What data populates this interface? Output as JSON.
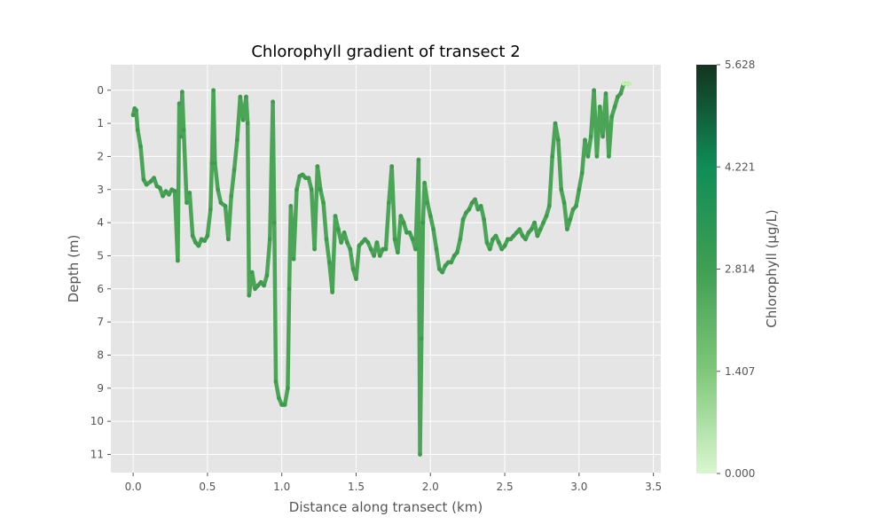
{
  "chart_data": {
    "type": "scatter",
    "title": "Chlorophyll gradient of transect 2",
    "xlabel": "Distance along transect (km)",
    "ylabel": "Depth (m)",
    "xlim": [
      -0.15,
      3.55
    ],
    "ylim": [
      11.55,
      -0.77
    ],
    "y_inverted": true,
    "grid": true,
    "x_ticks": [
      0.0,
      0.5,
      1.0,
      1.5,
      2.0,
      2.5,
      3.0,
      3.5
    ],
    "x_tick_labels": [
      "0.0",
      "0.5",
      "1.0",
      "1.5",
      "2.0",
      "2.5",
      "3.0",
      "3.5"
    ],
    "y_ticks": [
      0,
      1,
      2,
      3,
      4,
      5,
      6,
      7,
      8,
      9,
      10,
      11
    ],
    "y_tick_labels": [
      "0",
      "1",
      "2",
      "3",
      "4",
      "5",
      "6",
      "7",
      "8",
      "9",
      "10",
      "11"
    ],
    "colorbar": {
      "label": "Chlorophyll (µg/L)",
      "range": [
        0.0,
        5.628
      ],
      "ticks": [
        0.0,
        1.407,
        2.814,
        4.221,
        5.628
      ],
      "tick_labels": [
        "0.000",
        "1.407",
        "2.814",
        "4.221",
        "5.628"
      ],
      "colormap": [
        "#d9f7cf",
        "#7fc77a",
        "#3f9f52",
        "#108d57",
        "#13341f"
      ]
    },
    "points": [
      [
        0.0,
        0.75
      ],
      [
        0.01,
        0.55
      ],
      [
        0.02,
        0.6
      ],
      [
        0.03,
        1.2
      ],
      [
        0.05,
        1.7
      ],
      [
        0.07,
        2.7
      ],
      [
        0.09,
        2.85
      ],
      [
        0.12,
        2.75
      ],
      [
        0.14,
        2.65
      ],
      [
        0.16,
        2.9
      ],
      [
        0.18,
        2.95
      ],
      [
        0.2,
        3.2
      ],
      [
        0.22,
        3.05
      ],
      [
        0.24,
        3.15
      ],
      [
        0.26,
        3.0
      ],
      [
        0.28,
        3.05
      ],
      [
        0.3,
        5.15
      ],
      [
        0.31,
        0.4
      ],
      [
        0.32,
        1.4
      ],
      [
        0.33,
        0.05
      ],
      [
        0.34,
        1.2
      ],
      [
        0.36,
        3.4
      ],
      [
        0.38,
        3.1
      ],
      [
        0.4,
        4.4
      ],
      [
        0.42,
        4.6
      ],
      [
        0.44,
        4.7
      ],
      [
        0.46,
        4.5
      ],
      [
        0.48,
        4.55
      ],
      [
        0.5,
        4.4
      ],
      [
        0.52,
        3.6
      ],
      [
        0.53,
        2.2
      ],
      [
        0.54,
        0.0
      ],
      [
        0.55,
        2.2
      ],
      [
        0.57,
        3.0
      ],
      [
        0.59,
        3.4
      ],
      [
        0.62,
        3.5
      ],
      [
        0.64,
        4.5
      ],
      [
        0.66,
        3.2
      ],
      [
        0.68,
        2.4
      ],
      [
        0.7,
        1.5
      ],
      [
        0.72,
        0.2
      ],
      [
        0.74,
        0.9
      ],
      [
        0.76,
        0.2
      ],
      [
        0.77,
        1.0
      ],
      [
        0.78,
        6.2
      ],
      [
        0.8,
        5.5
      ],
      [
        0.82,
        6.0
      ],
      [
        0.84,
        5.9
      ],
      [
        0.86,
        5.8
      ],
      [
        0.88,
        5.9
      ],
      [
        0.9,
        5.6
      ],
      [
        0.92,
        4.5
      ],
      [
        0.94,
        0.35
      ],
      [
        0.95,
        4.0
      ],
      [
        0.96,
        8.8
      ],
      [
        0.98,
        9.3
      ],
      [
        1.0,
        9.5
      ],
      [
        1.02,
        9.5
      ],
      [
        1.04,
        9.0
      ],
      [
        1.05,
        6.0
      ],
      [
        1.06,
        3.5
      ],
      [
        1.08,
        5.1
      ],
      [
        1.1,
        3.0
      ],
      [
        1.12,
        2.6
      ],
      [
        1.14,
        2.55
      ],
      [
        1.16,
        2.65
      ],
      [
        1.18,
        2.65
      ],
      [
        1.2,
        3.0
      ],
      [
        1.22,
        4.8
      ],
      [
        1.24,
        2.3
      ],
      [
        1.26,
        3.0
      ],
      [
        1.28,
        3.4
      ],
      [
        1.3,
        4.5
      ],
      [
        1.32,
        5.2
      ],
      [
        1.34,
        6.1
      ],
      [
        1.36,
        3.8
      ],
      [
        1.38,
        4.2
      ],
      [
        1.4,
        4.6
      ],
      [
        1.42,
        4.3
      ],
      [
        1.44,
        4.6
      ],
      [
        1.46,
        4.8
      ],
      [
        1.48,
        5.4
      ],
      [
        1.5,
        5.7
      ],
      [
        1.52,
        4.7
      ],
      [
        1.54,
        4.6
      ],
      [
        1.56,
        4.5
      ],
      [
        1.58,
        4.6
      ],
      [
        1.6,
        4.8
      ],
      [
        1.62,
        5.0
      ],
      [
        1.64,
        4.6
      ],
      [
        1.66,
        5.0
      ],
      [
        1.68,
        4.8
      ],
      [
        1.7,
        4.8
      ],
      [
        1.72,
        3.4
      ],
      [
        1.74,
        2.3
      ],
      [
        1.76,
        4.5
      ],
      [
        1.78,
        4.9
      ],
      [
        1.8,
        3.8
      ],
      [
        1.82,
        4.0
      ],
      [
        1.84,
        4.3
      ],
      [
        1.86,
        4.3
      ],
      [
        1.88,
        4.5
      ],
      [
        1.9,
        4.8
      ],
      [
        1.92,
        2.1
      ],
      [
        1.93,
        11.0
      ],
      [
        1.94,
        7.5
      ],
      [
        1.95,
        4.0
      ],
      [
        1.96,
        2.8
      ],
      [
        1.98,
        3.4
      ],
      [
        2.0,
        3.8
      ],
      [
        2.02,
        4.2
      ],
      [
        2.04,
        4.8
      ],
      [
        2.06,
        5.4
      ],
      [
        2.08,
        5.5
      ],
      [
        2.1,
        5.3
      ],
      [
        2.12,
        5.2
      ],
      [
        2.14,
        5.2
      ],
      [
        2.16,
        5.0
      ],
      [
        2.18,
        4.9
      ],
      [
        2.2,
        4.5
      ],
      [
        2.22,
        3.9
      ],
      [
        2.24,
        3.7
      ],
      [
        2.26,
        3.6
      ],
      [
        2.28,
        3.4
      ],
      [
        2.3,
        3.3
      ],
      [
        2.32,
        3.6
      ],
      [
        2.34,
        3.5
      ],
      [
        2.36,
        3.9
      ],
      [
        2.38,
        4.6
      ],
      [
        2.4,
        4.8
      ],
      [
        2.42,
        4.5
      ],
      [
        2.44,
        4.4
      ],
      [
        2.46,
        4.6
      ],
      [
        2.48,
        4.8
      ],
      [
        2.5,
        4.7
      ],
      [
        2.52,
        4.5
      ],
      [
        2.54,
        4.5
      ],
      [
        2.56,
        4.4
      ],
      [
        2.58,
        4.3
      ],
      [
        2.6,
        4.2
      ],
      [
        2.62,
        4.4
      ],
      [
        2.64,
        4.5
      ],
      [
        2.66,
        4.3
      ],
      [
        2.68,
        4.2
      ],
      [
        2.7,
        4.0
      ],
      [
        2.72,
        4.4
      ],
      [
        2.74,
        4.2
      ],
      [
        2.76,
        4.0
      ],
      [
        2.78,
        3.8
      ],
      [
        2.8,
        3.5
      ],
      [
        2.82,
        2.0
      ],
      [
        2.84,
        1.0
      ],
      [
        2.86,
        1.5
      ],
      [
        2.88,
        3.0
      ],
      [
        2.9,
        3.4
      ],
      [
        2.92,
        4.2
      ],
      [
        2.94,
        3.9
      ],
      [
        2.96,
        3.6
      ],
      [
        2.98,
        3.5
      ],
      [
        3.0,
        3.0
      ],
      [
        3.02,
        2.5
      ],
      [
        3.04,
        1.5
      ],
      [
        3.06,
        2.0
      ],
      [
        3.08,
        1.4
      ],
      [
        3.1,
        0.0
      ],
      [
        3.12,
        2.0
      ],
      [
        3.14,
        0.5
      ],
      [
        3.16,
        1.4
      ],
      [
        3.18,
        0.1
      ],
      [
        3.2,
        2.0
      ],
      [
        3.22,
        0.8
      ],
      [
        3.24,
        0.5
      ],
      [
        3.26,
        0.2
      ],
      [
        3.28,
        0.1
      ],
      [
        3.3,
        -0.2
      ],
      [
        3.32,
        -0.2
      ],
      [
        3.34,
        -0.2
      ]
    ]
  }
}
